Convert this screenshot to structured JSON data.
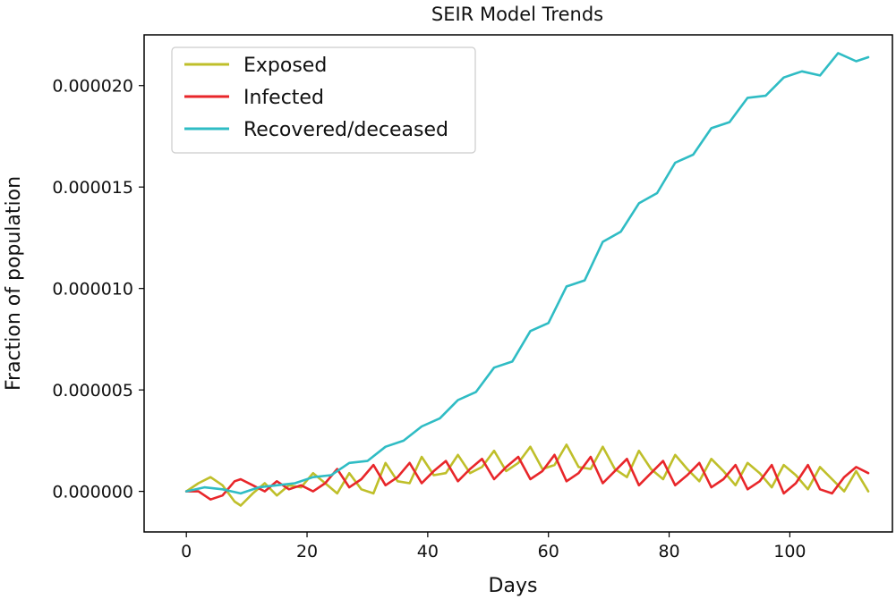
{
  "chart_data": {
    "type": "line",
    "title": "SEIR Model Trends",
    "xlabel": "Days",
    "ylabel": "Fraction of population",
    "xlim": [
      -7,
      117
    ],
    "ylim": [
      -2e-06,
      2.25e-05
    ],
    "xticks": [
      0,
      20,
      40,
      60,
      80,
      100
    ],
    "xtick_labels": [
      "0",
      "20",
      "40",
      "60",
      "80",
      "100"
    ],
    "yticks": [
      0,
      5e-06,
      1e-05,
      1.5e-05,
      2e-05
    ],
    "ytick_labels": [
      "0.000000",
      "0.000005",
      "0.000010",
      "0.000015",
      "0.000020"
    ],
    "grid": false,
    "legend_position": "top-left",
    "series": [
      {
        "name": "Exposed",
        "color": "#bfbf2a",
        "x": [
          0,
          2,
          4,
          6,
          8,
          9,
          11,
          13,
          15,
          17,
          19,
          21,
          23,
          25,
          27,
          29,
          31,
          33,
          35,
          37,
          39,
          41,
          43,
          45,
          47,
          49,
          51,
          53,
          55,
          57,
          59,
          61,
          63,
          65,
          67,
          69,
          71,
          73,
          75,
          77,
          79,
          81,
          83,
          85,
          87,
          89,
          91,
          93,
          95,
          97,
          99,
          101,
          103,
          105,
          107,
          109,
          111,
          113
        ],
        "values": [
          0.0,
          4e-07,
          7e-07,
          3e-07,
          -5e-07,
          -7e-07,
          -1e-07,
          4e-07,
          -2e-07,
          3e-07,
          2e-07,
          9e-07,
          4e-07,
          -1e-07,
          9e-07,
          1e-07,
          -1e-07,
          1.4e-06,
          5e-07,
          4e-07,
          1.7e-06,
          8e-07,
          9e-07,
          1.8e-06,
          9e-07,
          1.2e-06,
          2e-06,
          1e-06,
          1.4e-06,
          2.2e-06,
          1.1e-06,
          1.3e-06,
          2.3e-06,
          1.2e-06,
          1.1e-06,
          2.2e-06,
          1.1e-06,
          7e-07,
          2e-06,
          1.1e-06,
          6e-07,
          1.8e-06,
          1.1e-06,
          5e-07,
          1.6e-06,
          1e-06,
          3e-07,
          1.4e-06,
          9e-07,
          2e-07,
          1.3e-06,
          8e-07,
          1e-07,
          1.2e-06,
          6e-07,
          0.0,
          1e-06,
          0.0
        ]
      },
      {
        "name": "Infected",
        "color": "#e8262a",
        "x": [
          0,
          2,
          4,
          6,
          8,
          9,
          11,
          13,
          15,
          17,
          19,
          21,
          23,
          25,
          27,
          29,
          31,
          33,
          35,
          37,
          39,
          41,
          43,
          45,
          47,
          49,
          51,
          53,
          55,
          57,
          59,
          61,
          63,
          65,
          67,
          69,
          71,
          73,
          75,
          77,
          79,
          81,
          83,
          85,
          87,
          89,
          91,
          93,
          95,
          97,
          99,
          101,
          103,
          105,
          107,
          109,
          111,
          113
        ],
        "values": [
          0.0,
          0.0,
          -4e-07,
          -2e-07,
          5e-07,
          6e-07,
          3e-07,
          0.0,
          5e-07,
          1e-07,
          3e-07,
          0.0,
          4e-07,
          1.1e-06,
          2e-07,
          6e-07,
          1.3e-06,
          3e-07,
          7e-07,
          1.4e-06,
          4e-07,
          1e-06,
          1.5e-06,
          5e-07,
          1.1e-06,
          1.6e-06,
          6e-07,
          1.2e-06,
          1.7e-06,
          6e-07,
          1e-06,
          1.8e-06,
          5e-07,
          9e-07,
          1.7e-06,
          4e-07,
          1e-06,
          1.6e-06,
          3e-07,
          9e-07,
          1.5e-06,
          3e-07,
          8e-07,
          1.4e-06,
          2e-07,
          6e-07,
          1.3e-06,
          1e-07,
          5e-07,
          1.3e-06,
          -1e-07,
          4e-07,
          1.3e-06,
          1e-07,
          -1e-07,
          7e-07,
          1.2e-06,
          9e-07
        ]
      },
      {
        "name": "Recovered/deceased",
        "color": "#2fbcc4",
        "x": [
          0,
          3,
          6,
          9,
          12,
          15,
          18,
          21,
          24,
          27,
          30,
          33,
          36,
          39,
          42,
          45,
          48,
          51,
          54,
          57,
          60,
          63,
          66,
          69,
          72,
          75,
          78,
          81,
          84,
          87,
          90,
          93,
          96,
          99,
          102,
          105,
          108,
          111,
          113
        ],
        "values": [
          0.0,
          2e-07,
          1e-07,
          -1e-07,
          2e-07,
          3e-07,
          4e-07,
          7e-07,
          8e-07,
          1.4e-06,
          1.5e-06,
          2.2e-06,
          2.5e-06,
          3.2e-06,
          3.6e-06,
          4.5e-06,
          4.9e-06,
          6.1e-06,
          6.4e-06,
          7.9e-06,
          8.3e-06,
          1.01e-05,
          1.04e-05,
          1.23e-05,
          1.28e-05,
          1.42e-05,
          1.47e-05,
          1.62e-05,
          1.66e-05,
          1.79e-05,
          1.82e-05,
          1.94e-05,
          1.95e-05,
          2.04e-05,
          2.07e-05,
          2.05e-05,
          2.16e-05,
          2.12e-05,
          2.14e-05
        ]
      }
    ]
  }
}
